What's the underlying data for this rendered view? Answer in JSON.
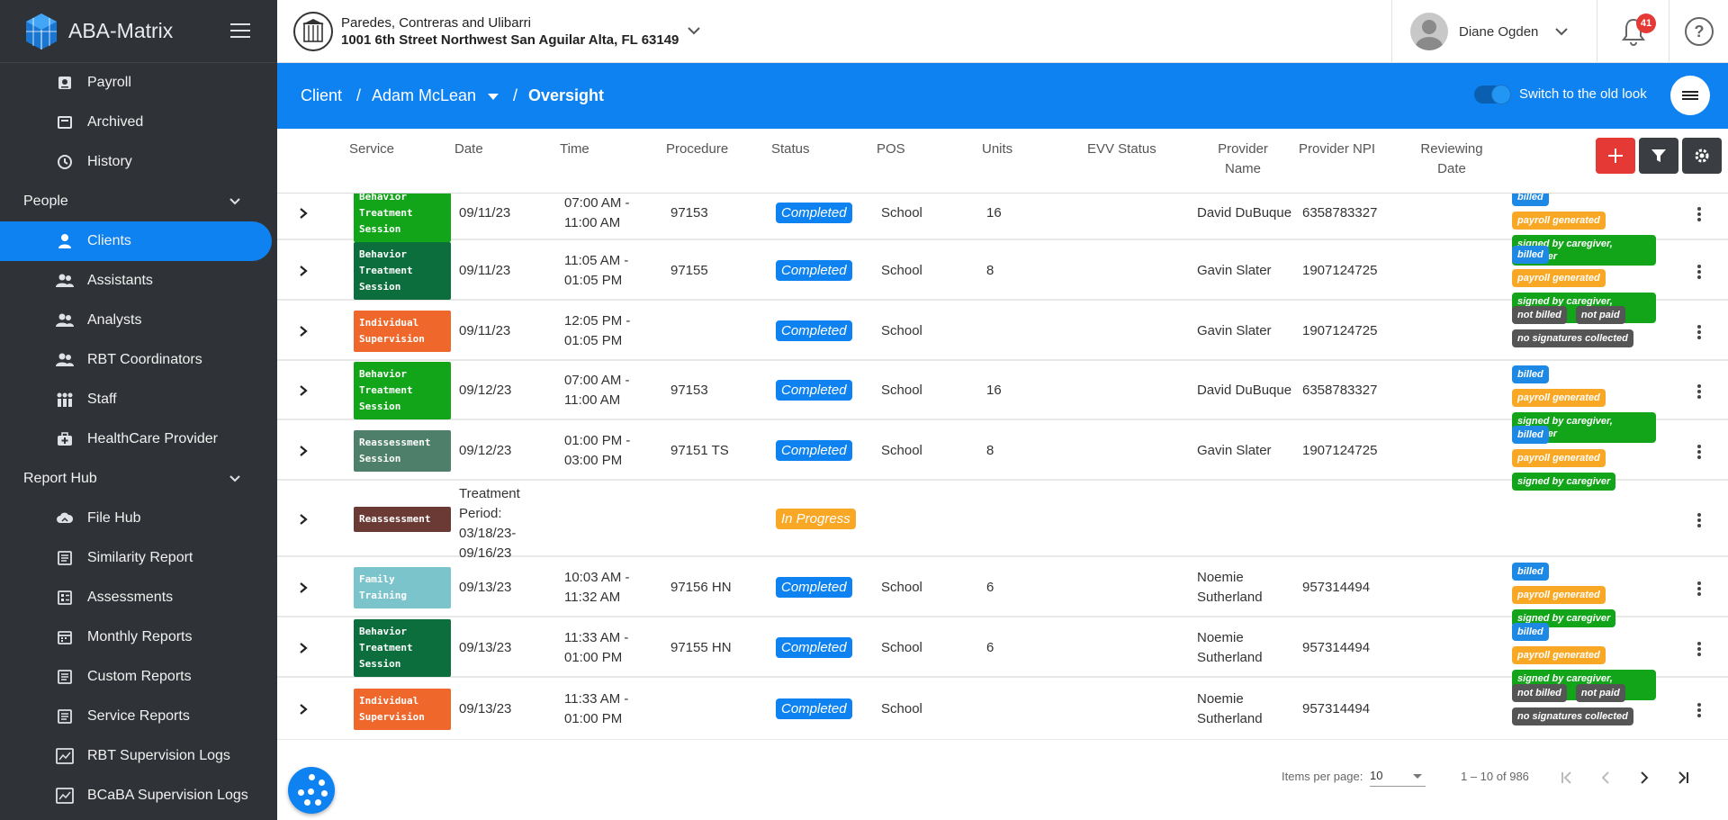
{
  "app": {
    "name": "ABA-Matrix"
  },
  "sidebar": {
    "items_top": [
      {
        "label": "Payroll",
        "icon": "payroll-icon"
      },
      {
        "label": "Archived",
        "icon": "archive-icon"
      },
      {
        "label": "History",
        "icon": "history-icon"
      }
    ],
    "people_section": "People",
    "people": [
      {
        "label": "Clients",
        "icon": "client-icon",
        "active": true
      },
      {
        "label": "Assistants",
        "icon": "people-icon"
      },
      {
        "label": "Analysts",
        "icon": "people-icon"
      },
      {
        "label": "RBT Coordinators",
        "icon": "people-icon"
      },
      {
        "label": "Staff",
        "icon": "staff-icon"
      },
      {
        "label": "HealthCare Provider",
        "icon": "medical-kit-icon"
      }
    ],
    "report_section": "Report Hub",
    "reports": [
      {
        "label": "File Hub",
        "icon": "cloud-icon"
      },
      {
        "label": "Similarity Report",
        "icon": "list-icon"
      },
      {
        "label": "Assessments",
        "icon": "checklist-icon"
      },
      {
        "label": "Monthly Reports",
        "icon": "calendar-icon"
      },
      {
        "label": "Custom Reports",
        "icon": "list-icon"
      },
      {
        "label": "Service Reports",
        "icon": "list-icon"
      },
      {
        "label": "RBT Supervision Logs",
        "icon": "chart-icon"
      },
      {
        "label": "BCaBA Supervision Logs",
        "icon": "chart-icon"
      }
    ]
  },
  "topbar": {
    "org_name": "Paredes, Contreras and Ulibarri",
    "org_address": "1001 6th Street Northwest San Aguilar Alta, FL 63149",
    "user_name": "Diane Ogden",
    "notification_count": "41"
  },
  "breadcrumb": {
    "root": "Client",
    "sep": "/",
    "client": "Adam McLean",
    "page": "Oversight",
    "toggle_label": "Switch to the old look"
  },
  "table": {
    "headers": {
      "service": "Service",
      "date": "Date",
      "time": "Time",
      "procedure": "Procedure",
      "status": "Status",
      "pos": "POS",
      "units": "Units",
      "evv": "EVV Status",
      "provider_name_1": "Provider",
      "provider_name_2": "Name",
      "provider_npi": "Provider NPI",
      "reviewing_1": "Reviewing",
      "reviewing_2": "Date"
    },
    "rows": [
      {
        "service": [
          "Behavior",
          "Treatment",
          "Session"
        ],
        "svc_color": "#12a51a",
        "date": "09/11/23",
        "time": [
          "07:00 AM -",
          "11:00 AM"
        ],
        "procedure": "97153",
        "status": "Completed",
        "pos": "School",
        "units": "16",
        "provider": [
          "David DuBuque"
        ],
        "npi": "6358783327",
        "pills": [
          [
            "billed",
            "#1e88e5"
          ],
          [
            "payroll generated",
            "#f9a825"
          ],
          [
            "signed by caregiver, provider",
            "#12a51a"
          ]
        ]
      },
      {
        "service": [
          "Behavior",
          "Treatment",
          "Session"
        ],
        "svc_color": "#0b6e3c",
        "date": "09/11/23",
        "time": [
          "11:05 AM -",
          "01:05 PM"
        ],
        "procedure": "97155",
        "status": "Completed",
        "pos": "School",
        "units": "8",
        "provider": [
          "Gavin Slater"
        ],
        "npi": "1907124725",
        "pills": [
          [
            "billed",
            "#1e88e5"
          ],
          [
            "payroll generated",
            "#f9a825"
          ],
          [
            "signed by caregiver, provider",
            "#12a51a"
          ]
        ]
      },
      {
        "service": [
          "Individual",
          "Supervision"
        ],
        "svc_color": "#f0672b",
        "date": "09/11/23",
        "time": [
          "12:05 PM -",
          "01:05 PM"
        ],
        "procedure": "",
        "status": "Completed",
        "pos": "School",
        "units": "",
        "provider": [
          "Gavin Slater"
        ],
        "npi": "1907124725",
        "pills": [
          [
            "not billed",
            "#555555"
          ],
          [
            "not paid",
            "#555555"
          ],
          [
            "no signatures collected",
            "#555555"
          ]
        ]
      },
      {
        "service": [
          "Behavior",
          "Treatment",
          "Session"
        ],
        "svc_color": "#12a51a",
        "date": "09/12/23",
        "time": [
          "07:00 AM -",
          "11:00 AM"
        ],
        "procedure": "97153",
        "status": "Completed",
        "pos": "School",
        "units": "16",
        "provider": [
          "David DuBuque"
        ],
        "npi": "6358783327",
        "pills": [
          [
            "billed",
            "#1e88e5"
          ],
          [
            "payroll generated",
            "#f9a825"
          ],
          [
            "signed by caregiver, provider",
            "#12a51a"
          ]
        ]
      },
      {
        "service": [
          "Reassessment",
          "Session"
        ],
        "svc_color": "#4e7f6a",
        "date": "09/12/23",
        "time": [
          "01:00 PM -",
          "03:00 PM"
        ],
        "procedure": "97151 TS",
        "status": "Completed",
        "pos": "School",
        "units": "8",
        "provider": [
          "Gavin Slater"
        ],
        "npi": "1907124725",
        "pills": [
          [
            "billed",
            "#1e88e5"
          ],
          [
            "payroll generated",
            "#f9a825"
          ],
          [
            "signed by caregiver",
            "#12a51a"
          ]
        ]
      },
      {
        "service": [
          "Reassessment"
        ],
        "svc_color": "#6b3a34",
        "date": "Treatment Period: 03/18/23- 09/16/23",
        "time": [],
        "procedure": "",
        "status": "In Progress",
        "pos": "",
        "units": "",
        "provider": [],
        "npi": "",
        "pills": []
      },
      {
        "service": [
          "Family",
          "Training"
        ],
        "svc_color": "#7cc4cc",
        "date": "09/13/23",
        "time": [
          "10:03 AM -",
          "11:32 AM"
        ],
        "procedure": "97156 HN",
        "status": "Completed",
        "pos": "School",
        "units": "6",
        "provider": [
          "Noemie",
          "Sutherland"
        ],
        "npi": "957314494",
        "pills": [
          [
            "billed",
            "#1e88e5"
          ],
          [
            "payroll generated",
            "#f9a825"
          ],
          [
            "signed by caregiver",
            "#12a51a"
          ]
        ]
      },
      {
        "service": [
          "Behavior",
          "Treatment",
          "Session"
        ],
        "svc_color": "#0b6e3c",
        "date": "09/13/23",
        "time": [
          "11:33 AM -",
          "01:00 PM"
        ],
        "procedure": "97155 HN",
        "status": "Completed",
        "pos": "School",
        "units": "6",
        "provider": [
          "Noemie",
          "Sutherland"
        ],
        "npi": "957314494",
        "pills": [
          [
            "billed",
            "#1e88e5"
          ],
          [
            "payroll generated",
            "#f9a825"
          ],
          [
            "signed by caregiver, provider",
            "#12a51a"
          ]
        ]
      },
      {
        "service": [
          "Individual",
          "Supervision"
        ],
        "svc_color": "#f0672b",
        "date": "09/13/23",
        "time": [
          "11:33 AM -",
          "01:00 PM"
        ],
        "procedure": "",
        "status": "Completed",
        "pos": "School",
        "units": "",
        "provider": [
          "Noemie",
          "Sutherland"
        ],
        "npi": "957314494",
        "pills": [
          [
            "not billed",
            "#555555"
          ],
          [
            "not paid",
            "#555555"
          ],
          [
            "no signatures collected",
            "#555555"
          ]
        ]
      }
    ]
  },
  "pagination": {
    "items_label": "Items per page:",
    "per_page": "10",
    "range": "1 – 10 of 986"
  },
  "colors": {
    "primary": "#0d82f0",
    "sidebar": "#2f3236",
    "add": "#e53935",
    "completed": "#0d82f0",
    "in_progress": "#f9a825"
  }
}
